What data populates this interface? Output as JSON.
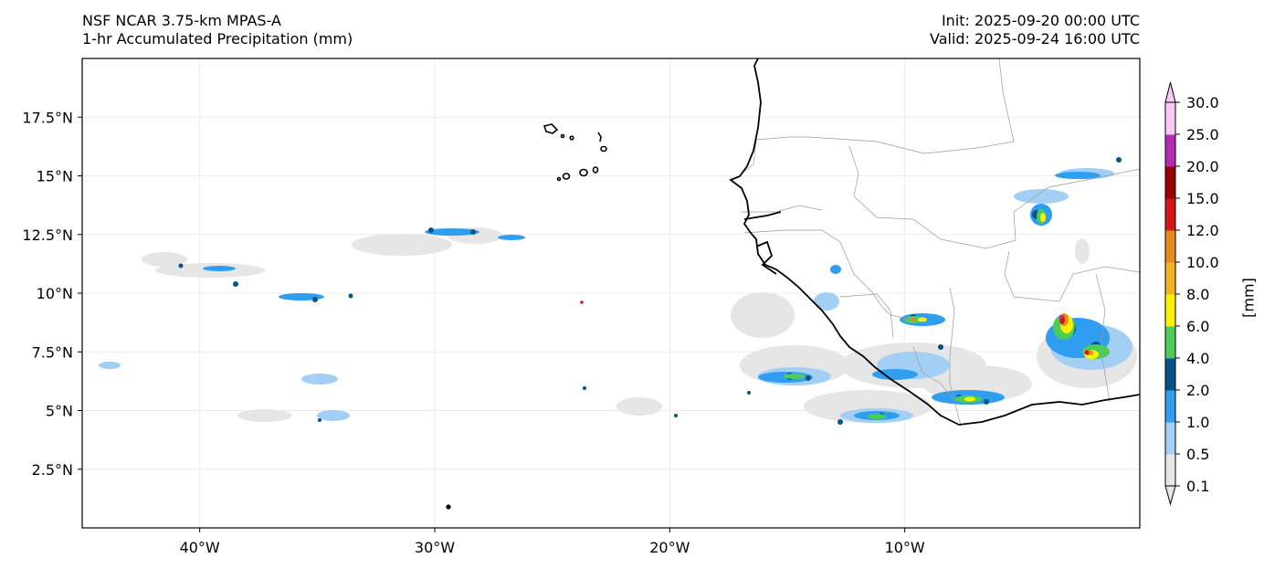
{
  "header": {
    "model": "NSF NCAR 3.75-km MPAS-A",
    "field": "1-hr Accumulated Precipitation (mm)",
    "init": "Init: 2025-09-20 00:00 UTC",
    "valid": "Valid: 2025-09-24 16:00 UTC"
  },
  "axes": {
    "lon_ticks": [
      "40°W",
      "30°W",
      "20°W",
      "10°W"
    ],
    "lat_ticks": [
      "17.5°N",
      "15°N",
      "12.5°N",
      "10°N",
      "7.5°N",
      "5°N",
      "2.5°N"
    ],
    "lon_values": [
      -40,
      -30,
      -20,
      -10
    ],
    "lat_values": [
      17.5,
      15,
      12.5,
      10,
      7.5,
      5,
      2.5
    ],
    "lon_range": [
      -45,
      0
    ],
    "lat_range": [
      0,
      20
    ],
    "grid": true
  },
  "colorbar": {
    "unit_label": "[mm]",
    "levels": [
      "0.1",
      "0.5",
      "1.0",
      "2.0",
      "4.0",
      "6.0",
      "8.0",
      "10.0",
      "12.0",
      "15.0",
      "20.0",
      "25.0",
      "30.0"
    ],
    "colors": [
      "#e6e6e6",
      "#a4cff5",
      "#2f9df0",
      "#06548a",
      "#4ccd5a",
      "#fff200",
      "#f5b31f",
      "#e8891d",
      "#d21616",
      "#9a0000",
      "#b52cb4",
      "#f9c8f5"
    ]
  }
}
